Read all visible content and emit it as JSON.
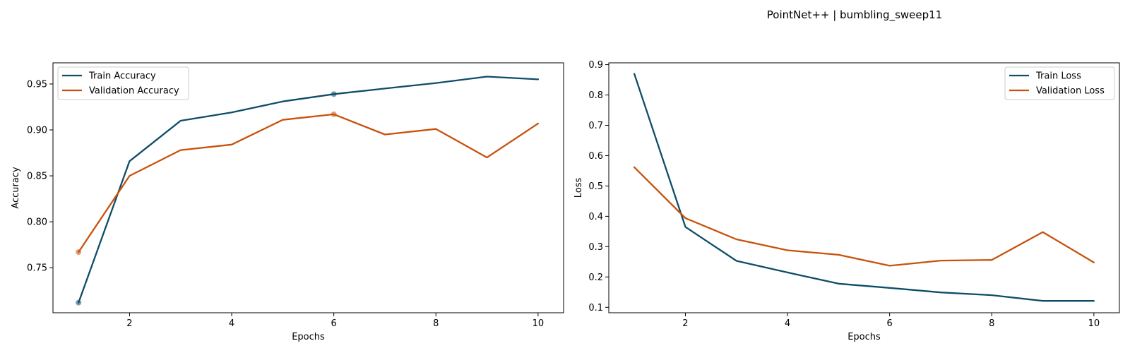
{
  "figure": {
    "suptitle": "PointNet++ | bumbling_sweep11"
  },
  "colors": {
    "train": "#0e4d68",
    "validation": "#c8510a"
  },
  "chart_data": [
    {
      "type": "line",
      "xlabel": "Epochs",
      "ylabel": "Accuracy",
      "xlim": [
        0.5,
        10.5
      ],
      "ylim": [
        0.701,
        0.973
      ],
      "xticks": [
        2,
        4,
        6,
        8,
        10
      ],
      "yticks": [
        0.75,
        0.8,
        0.85,
        0.9,
        0.95
      ],
      "ytick_labels": [
        "0.75",
        "0.80",
        "0.85",
        "0.90",
        "0.95"
      ],
      "legend_position": "upper-left",
      "x": [
        1,
        2,
        3,
        4,
        5,
        6,
        7,
        8,
        9,
        10
      ],
      "series": [
        {
          "name": "Train Accuracy",
          "color": "#0e4d68",
          "values": [
            0.712,
            0.866,
            0.91,
            0.919,
            0.931,
            0.939,
            0.945,
            0.951,
            0.958,
            0.955
          ],
          "highlight_x": [
            1,
            6
          ]
        },
        {
          "name": "Validation Accuracy",
          "color": "#c8510a",
          "values": [
            0.767,
            0.85,
            0.878,
            0.884,
            0.911,
            0.917,
            0.895,
            0.901,
            0.87,
            0.907
          ],
          "highlight_x": [
            1,
            6
          ]
        }
      ]
    },
    {
      "type": "line",
      "xlabel": "Epochs",
      "ylabel": "Loss",
      "xlim": [
        0.5,
        10.5
      ],
      "ylim": [
        0.082,
        0.906
      ],
      "xticks": [
        2,
        4,
        6,
        8,
        10
      ],
      "yticks": [
        0.1,
        0.2,
        0.3,
        0.4,
        0.5,
        0.6,
        0.7,
        0.8,
        0.9
      ],
      "ytick_labels": [
        "0.1",
        "0.2",
        "0.3",
        "0.4",
        "0.5",
        "0.6",
        "0.7",
        "0.8",
        "0.9"
      ],
      "legend_position": "upper-right",
      "x": [
        1,
        2,
        3,
        4,
        5,
        6,
        7,
        8,
        9,
        10
      ],
      "series": [
        {
          "name": "Train Loss",
          "color": "#0e4d68",
          "values": [
            0.87,
            0.365,
            0.253,
            0.215,
            0.178,
            0.164,
            0.149,
            0.14,
            0.121,
            0.121
          ],
          "highlight_x": []
        },
        {
          "name": "Validation Loss",
          "color": "#c8510a",
          "values": [
            0.562,
            0.394,
            0.324,
            0.288,
            0.273,
            0.237,
            0.254,
            0.256,
            0.348,
            0.248
          ],
          "highlight_x": []
        }
      ]
    }
  ]
}
